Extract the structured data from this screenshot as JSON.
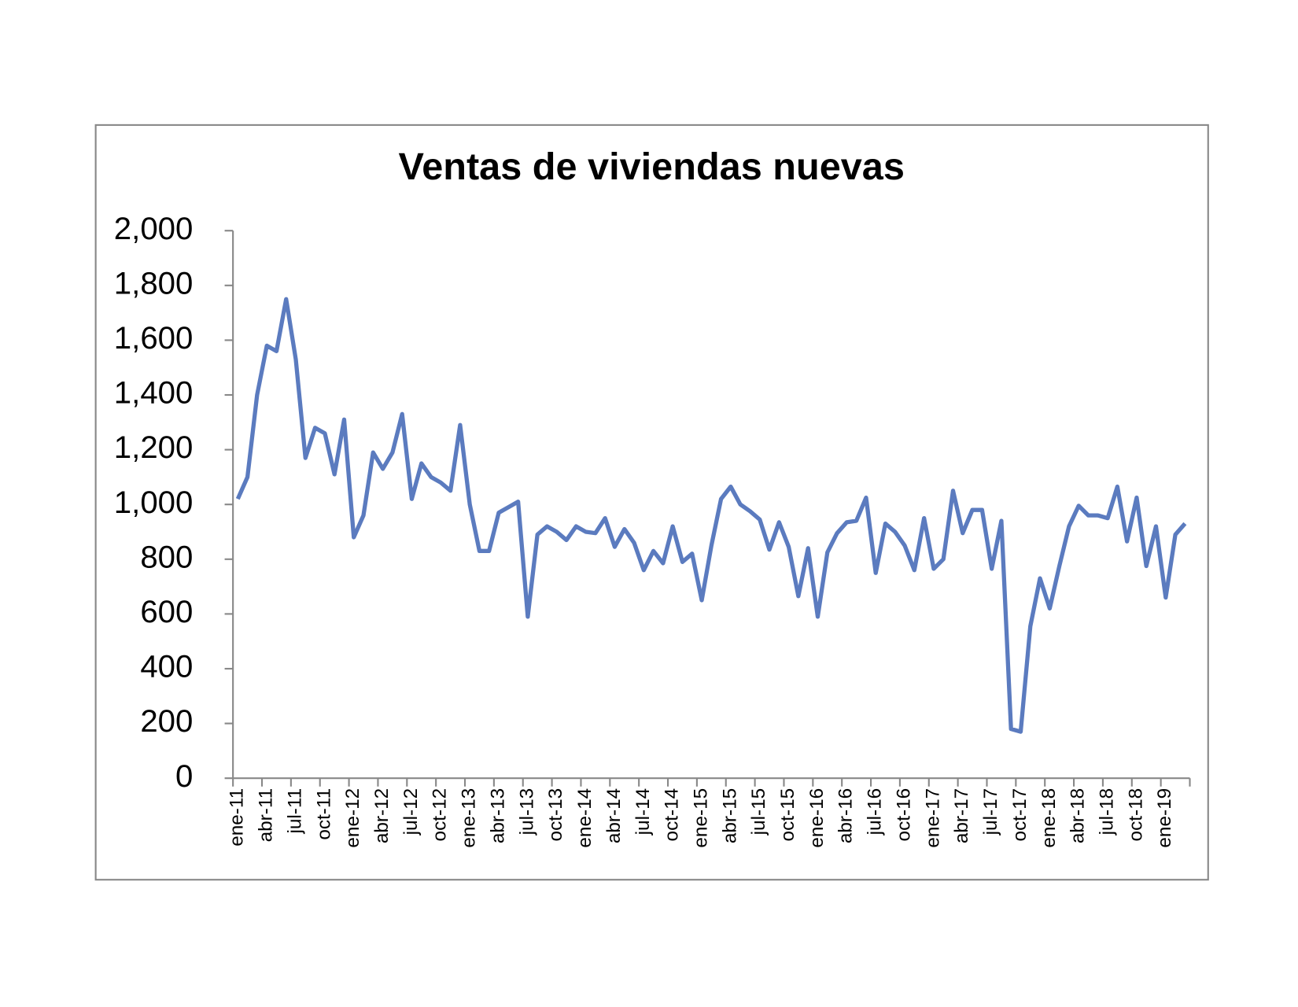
{
  "chart_data": {
    "type": "line",
    "title": "Ventas de viviendas nuevas",
    "categories": [
      "ene-11",
      null,
      null,
      "abr-11",
      null,
      null,
      "jul-11",
      null,
      null,
      "oct-11",
      null,
      null,
      "ene-12",
      null,
      null,
      "abr-12",
      null,
      null,
      "jul-12",
      null,
      null,
      "oct-12",
      null,
      null,
      "ene-13",
      null,
      null,
      "abr-13",
      null,
      null,
      "jul-13",
      null,
      null,
      "oct-13",
      null,
      null,
      "ene-14",
      null,
      null,
      "abr-14",
      null,
      null,
      "jul-14",
      null,
      null,
      "oct-14",
      null,
      null,
      "ene-15",
      null,
      null,
      "abr-15",
      null,
      null,
      "jul-15",
      null,
      null,
      "oct-15",
      null,
      null,
      "ene-16",
      null,
      null,
      "abr-16",
      null,
      null,
      "jul-16",
      null,
      null,
      "oct-16",
      null,
      null,
      "ene-17",
      null,
      null,
      "abr-17",
      null,
      null,
      "jul-17",
      null,
      null,
      "oct-17",
      null,
      null,
      "ene-18",
      null,
      null,
      "abr-18",
      null,
      null,
      "jul-18",
      null,
      null,
      "oct-18",
      null,
      null,
      "ene-19",
      null,
      null
    ],
    "values": [
      1020,
      1100,
      1400,
      1580,
      1560,
      1750,
      1530,
      1170,
      1280,
      1260,
      1110,
      1310,
      880,
      960,
      1190,
      1130,
      1190,
      1330,
      1020,
      1150,
      1100,
      1080,
      1050,
      1290,
      1000,
      830,
      830,
      970,
      990,
      1010,
      590,
      890,
      920,
      900,
      870,
      920,
      900,
      895,
      950,
      845,
      910,
      860,
      760,
      830,
      785,
      920,
      790,
      820,
      650,
      850,
      1020,
      1065,
      1000,
      975,
      945,
      835,
      935,
      845,
      665,
      840,
      590,
      825,
      895,
      935,
      940,
      1025,
      750,
      930,
      900,
      850,
      760,
      950,
      765,
      800,
      1050,
      895,
      980,
      980,
      765,
      940,
      180,
      170,
      555,
      730,
      620,
      775,
      920,
      995,
      960,
      960,
      950,
      1065,
      865,
      1025,
      775,
      920,
      660,
      890,
      930
    ],
    "color": "#5b7bbf",
    "ylim": [
      0,
      2000
    ],
    "yticks": [
      0,
      200,
      400,
      600,
      800,
      {
        "value": 1000,
        "label": "1,000"
      },
      {
        "value": 1200,
        "label": "1,200"
      },
      {
        "value": 1400,
        "label": "1,400"
      },
      {
        "value": 1600,
        "label": "1,600"
      },
      {
        "value": 1800,
        "label": "1,800"
      },
      {
        "value": 2000,
        "label": "2,000"
      }
    ]
  }
}
